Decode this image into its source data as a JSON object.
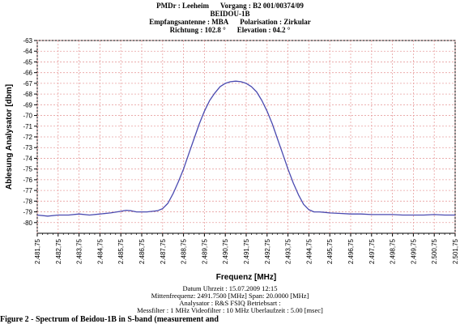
{
  "header": {
    "line1_left": "PMDr : Leeheim",
    "line1_right": "Vorgang : B2 001/00374/09",
    "line2": "BEIDOU-1B",
    "line3_left": "Empfangsantenne : MBA",
    "line3_right": "Polarisation : Zirkular",
    "line4_left": "Richtung : 102.8 °",
    "line4_right": "Elevation : 04.2 °"
  },
  "info": {
    "datum": "Datum Uhrzeit   : 15.07.2009 12:15",
    "frequenz": "Mittenfrequenz: 2491.7500 [MHz]    Span: 20.0000 [MHz]",
    "analysator": "Analysator : R&S FSIQ   Betriebsart :",
    "filter": "Messfilter  :   1 MHz   Videofilter  :   10 MHz   Uberlaufzeit :  5.00 [msec]"
  },
  "caption": "Figure 2 - Spectrum of Beidou-1B in S-band (measurement and",
  "chart_data": {
    "type": "line",
    "xlabel": "Frequenz [MHz]",
    "ylabel": "Ablesung Analysator [dbm]",
    "xlim": [
      2481.75,
      2501.75
    ],
    "ylim": [
      -81,
      -63
    ],
    "grid": true,
    "legend": "none",
    "line_color": "#4a4ab0",
    "grid_color": "#e8a0a0",
    "x_ticks": [
      2481.75,
      2482.75,
      2483.75,
      2484.75,
      2485.75,
      2486.75,
      2487.75,
      2488.75,
      2489.75,
      2490.75,
      2491.75,
      2492.75,
      2493.75,
      2494.75,
      2495.75,
      2496.75,
      2497.75,
      2498.75,
      2499.75,
      2500.75,
      2501.75
    ],
    "x_tick_labels": [
      "2.481,75",
      "2.482,75",
      "2.483,75",
      "2.484,75",
      "2.485,75",
      "2.486,75",
      "2.487,75",
      "2.488,75",
      "2.489,75",
      "2.490,75",
      "2.491,75",
      "2.492,75",
      "2.493,75",
      "2.494,75",
      "2.495,75",
      "2.496,75",
      "2.497,75",
      "2.498,75",
      "2.499,75",
      "2.500,75",
      "2.501,75"
    ],
    "y_ticks": [
      -63,
      -64,
      -65,
      -66,
      -67,
      -68,
      -69,
      -70,
      -71,
      -72,
      -73,
      -74,
      -75,
      -76,
      -77,
      -78,
      -79,
      -80
    ],
    "y_tick_labels": [
      "-63",
      "-64",
      "-65",
      "-66",
      "-67",
      "-68",
      "-69",
      "-70",
      "-71",
      "-72",
      "-73",
      "-74",
      "-75",
      "-76",
      "-77",
      "-78",
      "-79",
      "-80"
    ],
    "series": [
      {
        "x": [
          2481.75,
          2482.25,
          2482.75,
          2483.25,
          2483.75,
          2484.25,
          2484.75,
          2485.25,
          2485.75,
          2486.0,
          2486.25,
          2486.5,
          2486.75,
          2487.0,
          2487.25,
          2487.5,
          2487.75,
          2488.0,
          2488.25,
          2488.5,
          2488.75,
          2489.0,
          2489.25,
          2489.5,
          2489.75,
          2490.0,
          2490.25,
          2490.5,
          2490.75,
          2491.0,
          2491.25,
          2491.5,
          2491.75,
          2492.0,
          2492.25,
          2492.5,
          2492.75,
          2493.0,
          2493.25,
          2493.5,
          2493.75,
          2494.0,
          2494.25,
          2494.5,
          2494.75,
          2495.0,
          2495.25,
          2495.5,
          2495.75,
          2496.25,
          2496.75,
          2497.25,
          2497.75,
          2498.25,
          2498.75,
          2499.25,
          2499.75,
          2500.25,
          2500.75,
          2501.25,
          2501.75
        ],
        "y": [
          -79.3,
          -79.4,
          -79.3,
          -79.3,
          -79.2,
          -79.3,
          -79.2,
          -79.1,
          -78.95,
          -78.85,
          -78.9,
          -79.0,
          -79.0,
          -79.0,
          -78.95,
          -78.9,
          -78.7,
          -78.2,
          -77.3,
          -76.2,
          -75.0,
          -73.6,
          -72.2,
          -70.8,
          -69.6,
          -68.6,
          -67.9,
          -67.3,
          -67.0,
          -66.85,
          -66.8,
          -66.85,
          -67.0,
          -67.3,
          -67.8,
          -68.6,
          -69.6,
          -70.8,
          -72.2,
          -73.6,
          -75.0,
          -76.3,
          -77.4,
          -78.3,
          -78.8,
          -79.0,
          -79.0,
          -79.05,
          -79.1,
          -79.15,
          -79.2,
          -79.2,
          -79.25,
          -79.25,
          -79.25,
          -79.3,
          -79.3,
          -79.3,
          -79.25,
          -79.3,
          -79.3
        ]
      }
    ]
  }
}
